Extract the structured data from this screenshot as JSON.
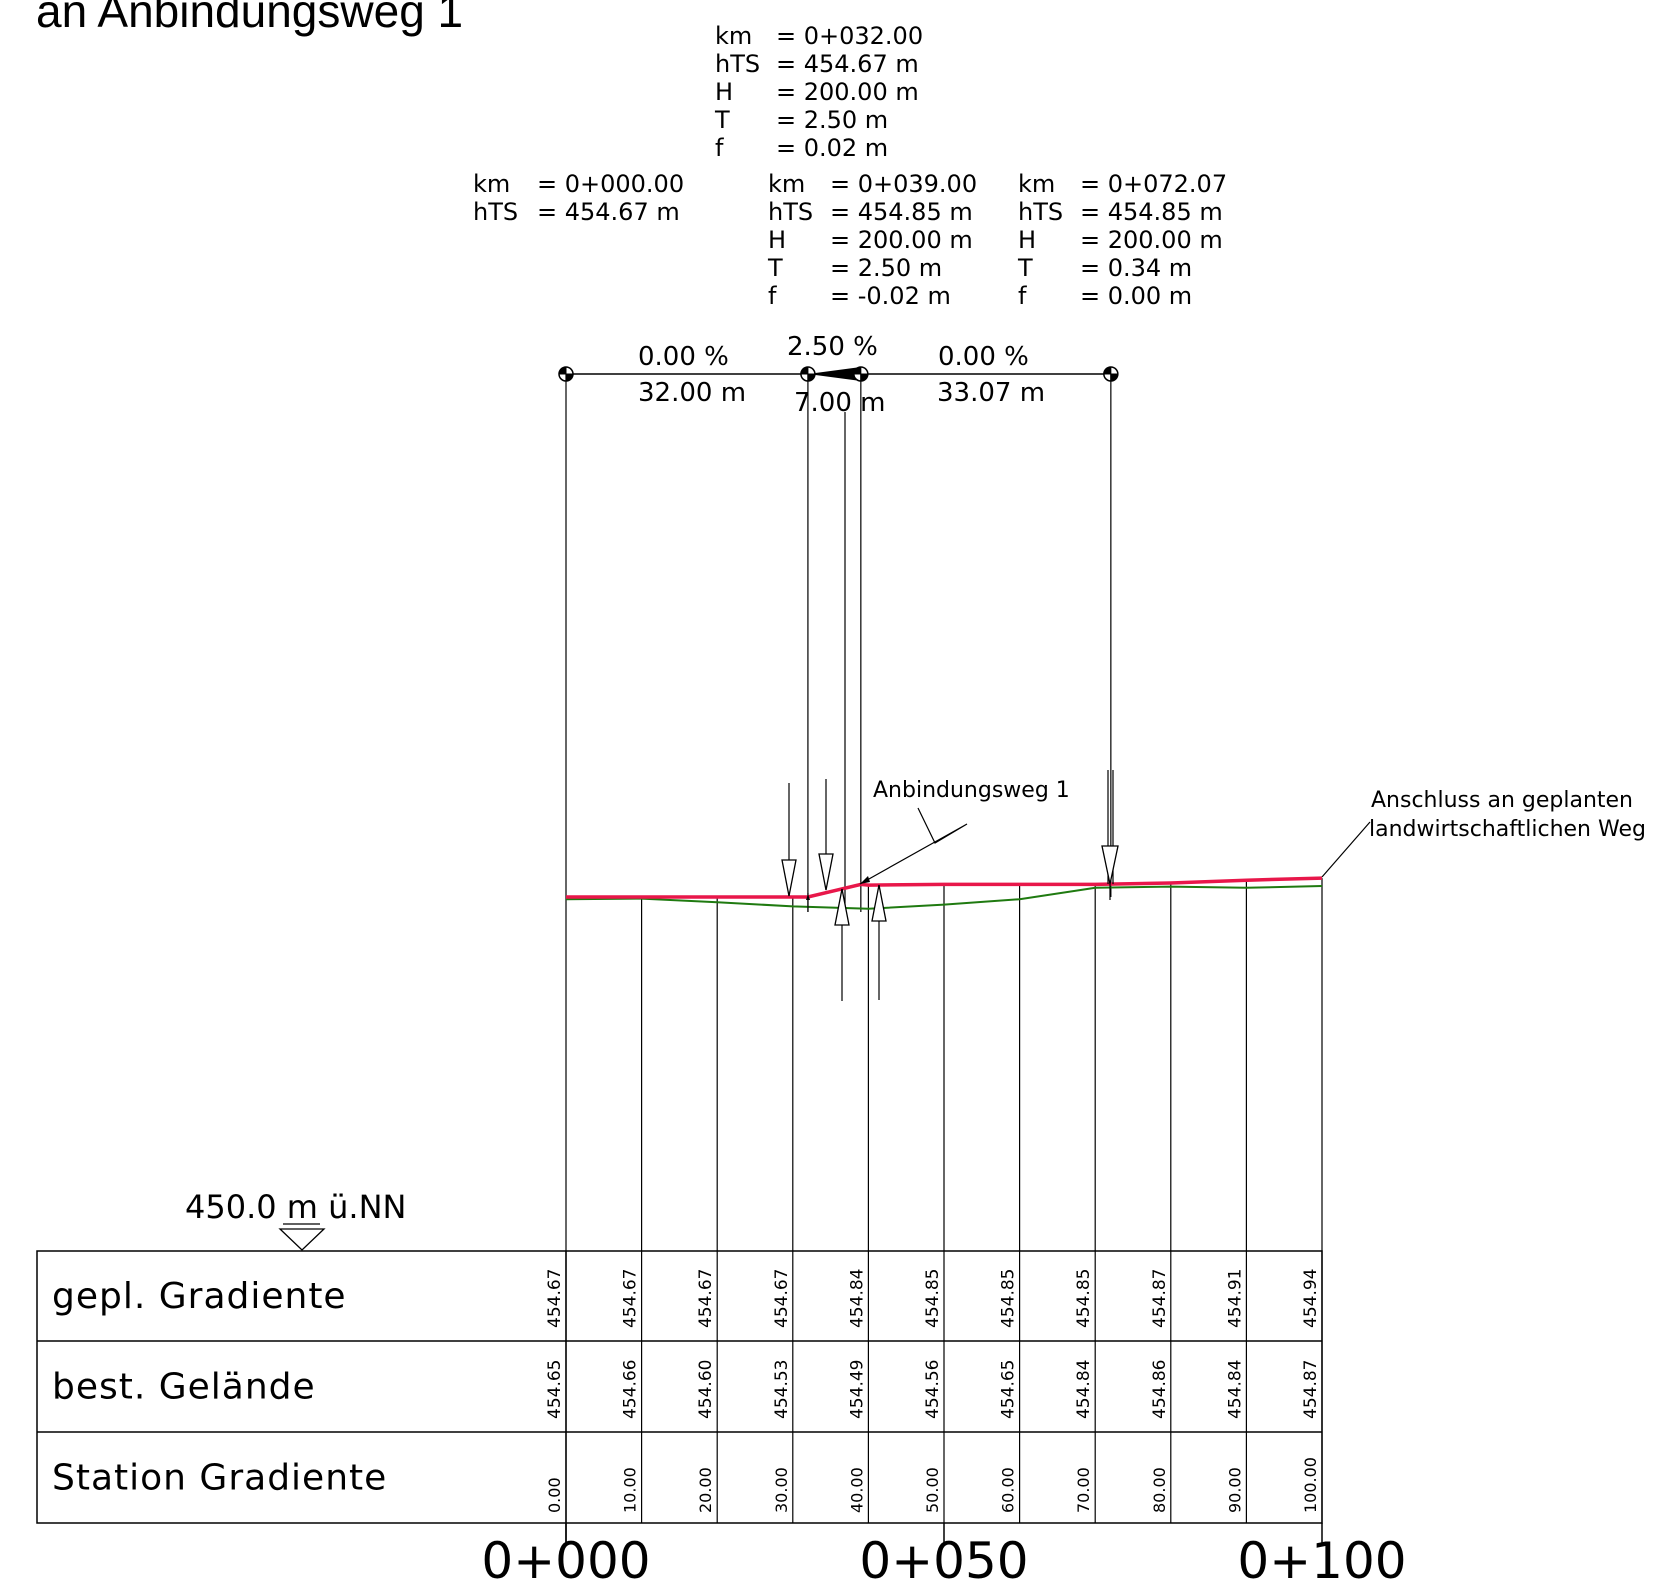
{
  "title": "an Anbindungsweg 1",
  "colors": {
    "gradient": "#e8174a",
    "terrain": "#1f7a10",
    "line": "#000000"
  },
  "reference_level": "450.0 m ü.NN",
  "curve_blocks": [
    {
      "lines": [
        {
          "key": "km",
          "val": "= 0+000.00"
        },
        {
          "key": "hTS",
          "val": "= 454.67 m"
        }
      ]
    },
    {
      "lines": [
        {
          "key": "km",
          "val": "= 0+032.00"
        },
        {
          "key": "hTS",
          "val": "= 454.67 m"
        },
        {
          "key": "H",
          "val": "= 200.00 m"
        },
        {
          "key": "T",
          "val": "= 2.50 m"
        },
        {
          "key": "f",
          "val": "= 0.02 m"
        }
      ]
    },
    {
      "lines": [
        {
          "key": "km",
          "val": "= 0+039.00"
        },
        {
          "key": "hTS",
          "val": "= 454.85 m"
        },
        {
          "key": "H",
          "val": "= 200.00 m"
        },
        {
          "key": "T",
          "val": "= 2.50 m"
        },
        {
          "key": "f",
          "val": "= -0.02 m"
        }
      ]
    },
    {
      "lines": [
        {
          "key": "km",
          "val": "= 0+072.07"
        },
        {
          "key": "hTS",
          "val": "= 454.85 m"
        },
        {
          "key": "H",
          "val": "= 200.00 m"
        },
        {
          "key": "T",
          "val": "= 0.34 m"
        },
        {
          "key": "f",
          "val": "= 0.00 m"
        }
      ]
    }
  ],
  "gradient_segments": [
    {
      "slope": "0.00 %",
      "length": "32.00 m"
    },
    {
      "slope": "2.50 %",
      "length": "7.00 m"
    },
    {
      "slope": "0.00 %",
      "length": "33.07 m"
    }
  ],
  "annotations": {
    "anbindungsweg": "Anbindungsweg 1",
    "anschluss_line1": "Anschluss an geplanten",
    "anschluss_line2": "landwirtschaftlichen Weg"
  },
  "table": {
    "rows": [
      {
        "label": "gepl. Gradiente",
        "values": [
          "454.67",
          "454.67",
          "454.67",
          "454.67",
          "454.84",
          "454.85",
          "454.85",
          "454.85",
          "454.87",
          "454.91",
          "454.94"
        ]
      },
      {
        "label": "best. Gelände",
        "values": [
          "454.65",
          "454.66",
          "454.60",
          "454.53",
          "454.49",
          "454.56",
          "454.65",
          "454.84",
          "454.86",
          "454.84",
          "454.87"
        ]
      },
      {
        "label": "Station Gradiente",
        "values": [
          "0.00",
          "10.00",
          "20.00",
          "30.00",
          "40.00",
          "50.00",
          "60.00",
          "70.00",
          "80.00",
          "90.00",
          "100.00"
        ]
      }
    ]
  },
  "station_labels": [
    "0+000",
    "0+050",
    "0+100"
  ]
}
